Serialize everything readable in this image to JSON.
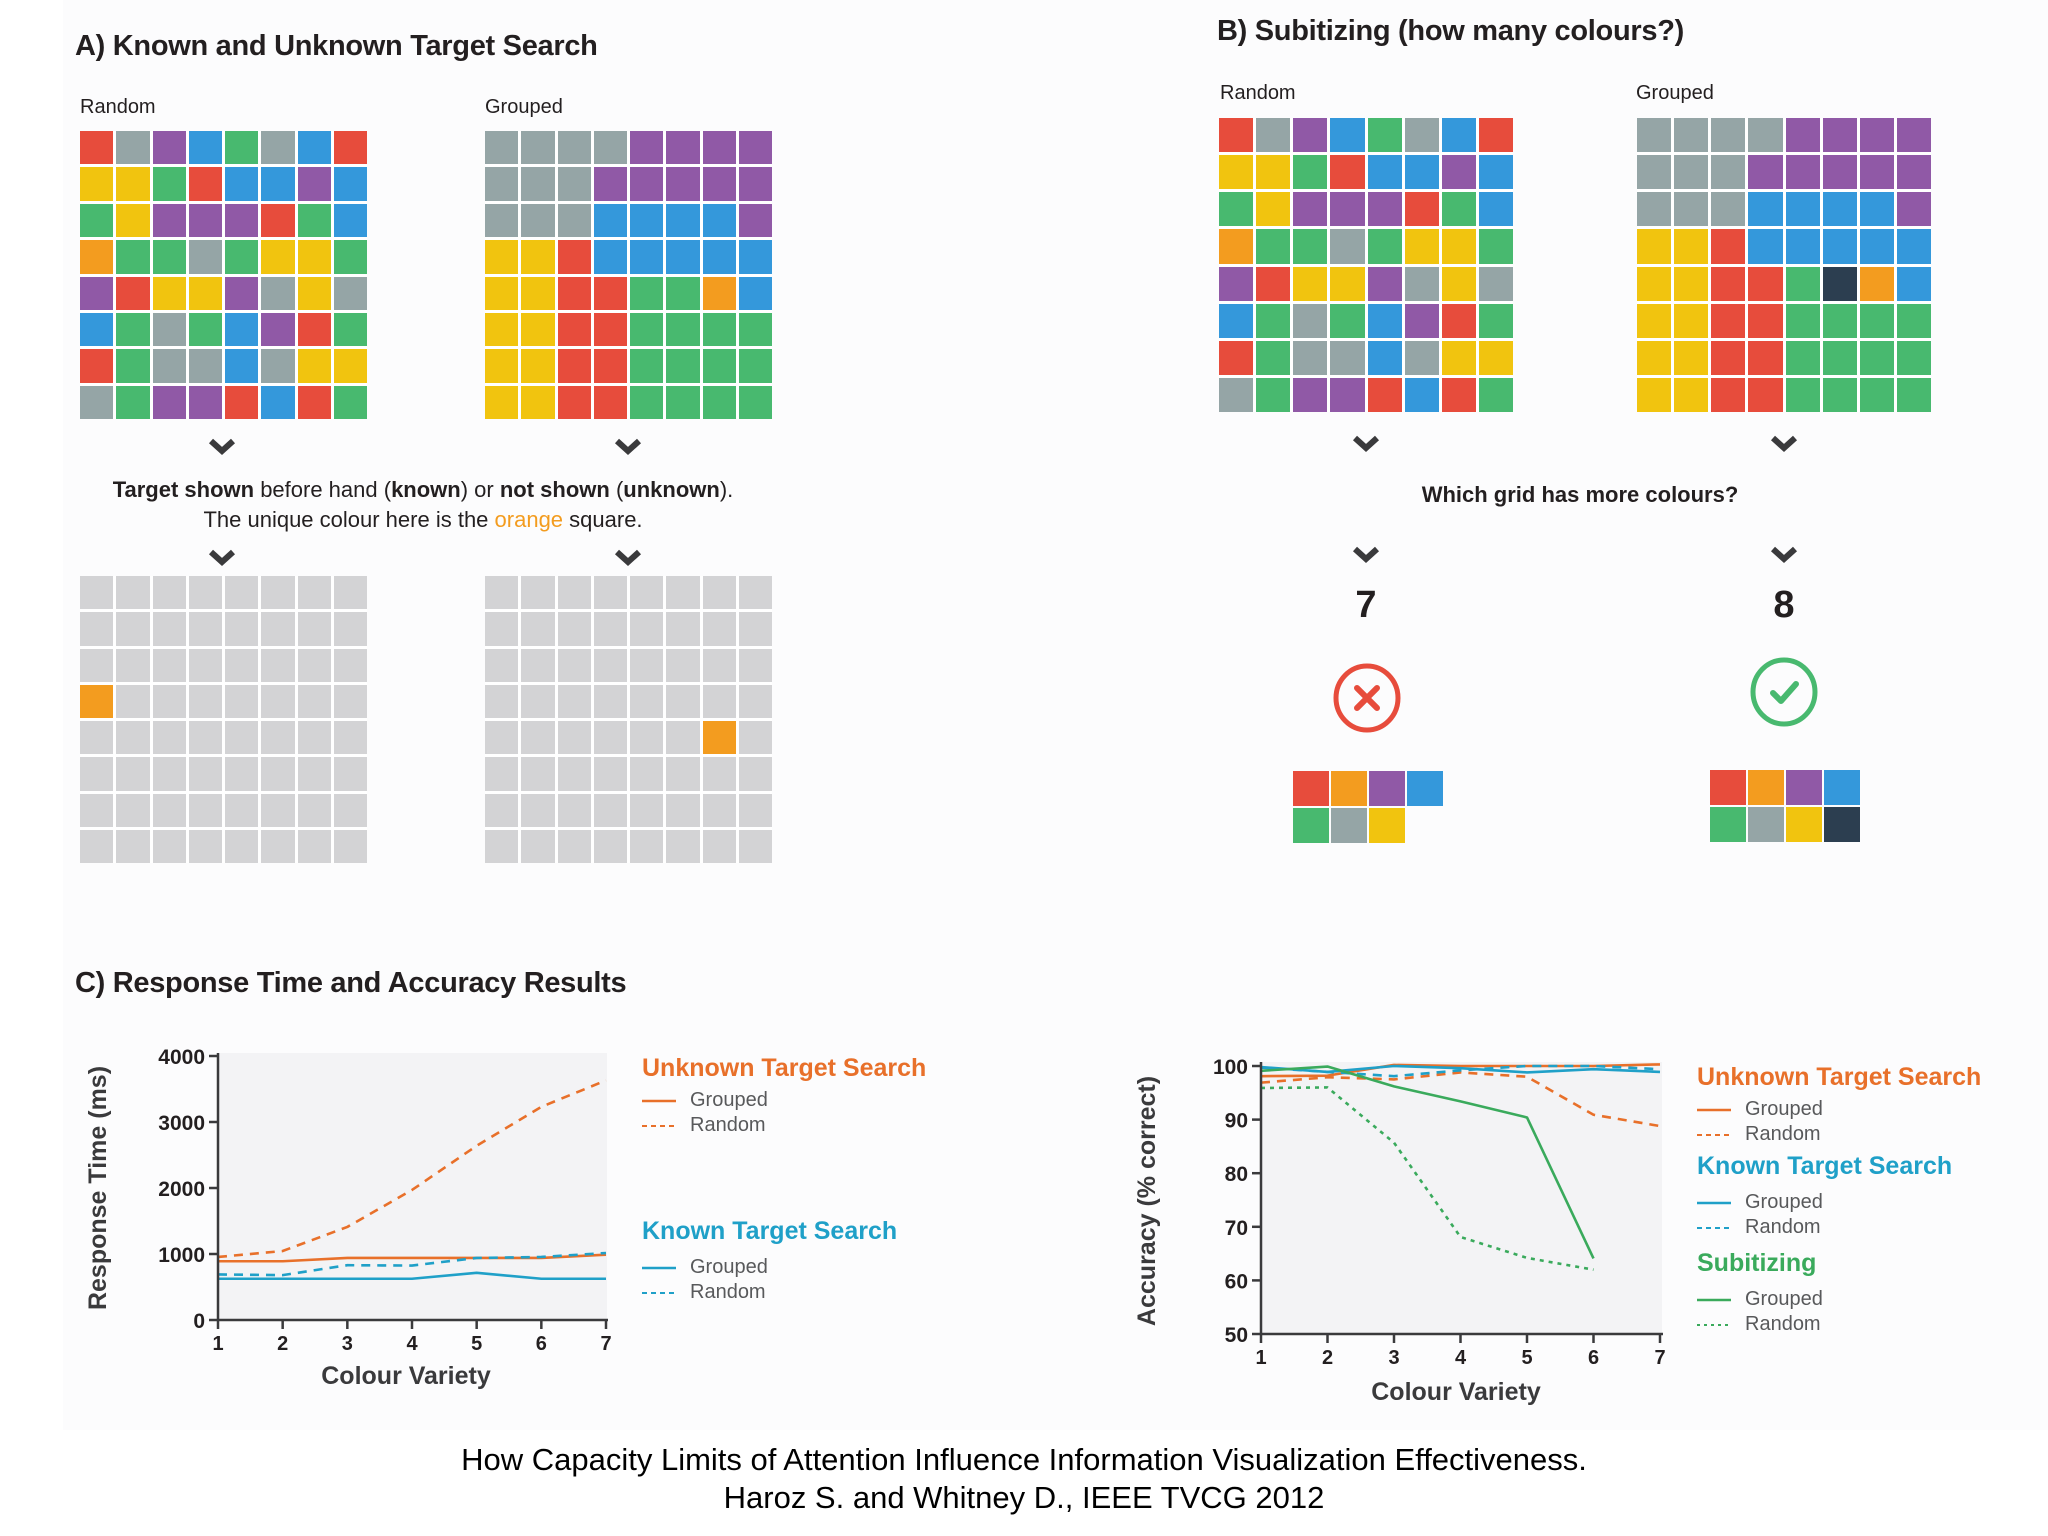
{
  "colors": {
    "red": "#e74c3c",
    "gray": "#95a5a6",
    "purple": "#9059a6",
    "blue": "#3498db",
    "green": "#48b96f",
    "yellow": "#f1c40f",
    "orange": "#f39c1f",
    "navy": "#2c3e50",
    "light": "#d3d3d5",
    "unknown": "#e8702a",
    "known": "#1fa0c8",
    "subitizing": "#3aaa5c",
    "wrong": "#e74c3c",
    "right": "#48b96f"
  },
  "panelA": {
    "title": "A) Known and Unknown Target Search",
    "random_label": "Random",
    "grouped_label": "Grouped",
    "random_grid": [
      [
        "red",
        "gray",
        "purple",
        "blue",
        "green",
        "gray",
        "blue",
        "red"
      ],
      [
        "yellow",
        "yellow",
        "green",
        "red",
        "blue",
        "blue",
        "purple",
        "blue"
      ],
      [
        "green",
        "yellow",
        "purple",
        "purple",
        "purple",
        "red",
        "green",
        "blue"
      ],
      [
        "orange",
        "green",
        "green",
        "gray",
        "green",
        "yellow",
        "yellow",
        "green"
      ],
      [
        "purple",
        "red",
        "yellow",
        "yellow",
        "purple",
        "gray",
        "yellow",
        "gray"
      ],
      [
        "blue",
        "green",
        "gray",
        "green",
        "blue",
        "purple",
        "red",
        "green"
      ],
      [
        "red",
        "green",
        "gray",
        "gray",
        "blue",
        "gray",
        "yellow",
        "yellow"
      ],
      [
        "gray",
        "green",
        "purple",
        "purple",
        "red",
        "blue",
        "red",
        "green"
      ]
    ],
    "grouped_grid": [
      [
        "gray",
        "gray",
        "gray",
        "gray",
        "purple",
        "purple",
        "purple",
        "purple"
      ],
      [
        "gray",
        "gray",
        "gray",
        "purple",
        "purple",
        "purple",
        "purple",
        "purple"
      ],
      [
        "gray",
        "gray",
        "gray",
        "blue",
        "blue",
        "blue",
        "blue",
        "purple"
      ],
      [
        "yellow",
        "yellow",
        "red",
        "blue",
        "blue",
        "blue",
        "blue",
        "blue"
      ],
      [
        "yellow",
        "yellow",
        "red",
        "red",
        "green",
        "green",
        "orange",
        "blue"
      ],
      [
        "yellow",
        "yellow",
        "red",
        "red",
        "green",
        "green",
        "green",
        "green"
      ],
      [
        "yellow",
        "yellow",
        "red",
        "red",
        "green",
        "green",
        "green",
        "green"
      ],
      [
        "yellow",
        "yellow",
        "red",
        "red",
        "green",
        "green",
        "green",
        "green"
      ]
    ],
    "instruction": {
      "t1": "Target shown",
      "t2": " before hand (",
      "t3": "known",
      "t4": ") or ",
      "t5": "not shown",
      "t6": " (",
      "t7": "unknown",
      "t8": ").",
      "line2a": "The unique colour here is the ",
      "line2b": "orange",
      "line2c": " square."
    },
    "random_target": {
      "row": 4,
      "col": 1
    },
    "grouped_target": {
      "row": 5,
      "col": 7
    }
  },
  "panelB": {
    "title": "B) Subitizing (how many colours?)",
    "random_label": "Random",
    "grouped_label": "Grouped",
    "random_grid": [
      [
        "red",
        "gray",
        "purple",
        "blue",
        "green",
        "gray",
        "blue",
        "red"
      ],
      [
        "yellow",
        "yellow",
        "green",
        "red",
        "blue",
        "blue",
        "purple",
        "blue"
      ],
      [
        "green",
        "yellow",
        "purple",
        "purple",
        "purple",
        "red",
        "green",
        "blue"
      ],
      [
        "orange",
        "green",
        "green",
        "gray",
        "green",
        "yellow",
        "yellow",
        "green"
      ],
      [
        "purple",
        "red",
        "yellow",
        "yellow",
        "purple",
        "gray",
        "yellow",
        "gray"
      ],
      [
        "blue",
        "green",
        "gray",
        "green",
        "blue",
        "purple",
        "red",
        "green"
      ],
      [
        "red",
        "green",
        "gray",
        "gray",
        "blue",
        "gray",
        "yellow",
        "yellow"
      ],
      [
        "gray",
        "green",
        "purple",
        "purple",
        "red",
        "blue",
        "red",
        "green"
      ]
    ],
    "grouped_grid": [
      [
        "gray",
        "gray",
        "gray",
        "gray",
        "purple",
        "purple",
        "purple",
        "purple"
      ],
      [
        "gray",
        "gray",
        "gray",
        "purple",
        "purple",
        "purple",
        "purple",
        "purple"
      ],
      [
        "gray",
        "gray",
        "gray",
        "blue",
        "blue",
        "blue",
        "blue",
        "purple"
      ],
      [
        "yellow",
        "yellow",
        "red",
        "blue",
        "blue",
        "blue",
        "blue",
        "blue"
      ],
      [
        "yellow",
        "yellow",
        "red",
        "red",
        "green",
        "navy",
        "orange",
        "blue"
      ],
      [
        "yellow",
        "yellow",
        "red",
        "red",
        "green",
        "green",
        "green",
        "green"
      ],
      [
        "yellow",
        "yellow",
        "red",
        "red",
        "green",
        "green",
        "green",
        "green"
      ],
      [
        "yellow",
        "yellow",
        "red",
        "red",
        "green",
        "green",
        "green",
        "green"
      ]
    ],
    "question": "Which grid has more colours?",
    "random_answer": "7",
    "grouped_answer": "8",
    "random_result_icon": "x-circle-icon",
    "grouped_result_icon": "check-circle-icon",
    "random_palette": [
      "red",
      "orange",
      "purple",
      "blue",
      "green",
      "gray",
      "yellow"
    ],
    "grouped_palette": [
      "red",
      "orange",
      "purple",
      "blue",
      "green",
      "gray",
      "yellow",
      "navy"
    ]
  },
  "panelC": {
    "title": "C) Response Time and Accuracy Results"
  },
  "chart_data": [
    {
      "type": "line",
      "title": "",
      "xlabel": "Colour Variety",
      "ylabel": "Response Time (ms)",
      "x": [
        1,
        2,
        3,
        4,
        5,
        6,
        7
      ],
      "xticks": [
        "1",
        "2",
        "3",
        "4",
        "5",
        "6",
        "7"
      ],
      "ylim": [
        0,
        4000
      ],
      "yticks": [
        "0",
        "1000",
        "2000",
        "3000",
        "4000"
      ],
      "grid": false,
      "legend_position": "right",
      "legend_groups": [
        {
          "title": "Unknown Target Search",
          "color_key": "unknown",
          "items": [
            "Grouped",
            "Random"
          ]
        },
        {
          "title": "Known Target Search",
          "color_key": "known",
          "items": [
            "Grouped",
            "Random"
          ]
        }
      ],
      "series": [
        {
          "name": "Unknown Target Search - Grouped",
          "color_key": "unknown",
          "style": "solid",
          "values": [
            890,
            890,
            940,
            940,
            940,
            940,
            990
          ]
        },
        {
          "name": "Unknown Target Search - Random",
          "color_key": "unknown",
          "style": "dashed",
          "values": [
            955,
            1045,
            1410,
            1970,
            2640,
            3230,
            3630
          ]
        },
        {
          "name": "Known Target Search - Grouped",
          "color_key": "known",
          "style": "solid",
          "values": [
            625,
            625,
            625,
            625,
            715,
            625,
            625
          ]
        },
        {
          "name": "Known Target Search - Random",
          "color_key": "known",
          "style": "dashed",
          "values": [
            690,
            680,
            830,
            825,
            940,
            955,
            1015
          ]
        }
      ]
    },
    {
      "type": "line",
      "title": "",
      "xlabel": "Colour Variety",
      "ylabel": "Accuracy (% correct)",
      "x": [
        1,
        2,
        3,
        4,
        5,
        6,
        7
      ],
      "xticks": [
        "1",
        "2",
        "3",
        "4",
        "5",
        "6",
        "7"
      ],
      "ylim": [
        50,
        100
      ],
      "yticks": [
        "50",
        "60",
        "70",
        "80",
        "90",
        "100"
      ],
      "grid": false,
      "legend_position": "right",
      "legend_groups": [
        {
          "title": "Unknown Target Search",
          "color_key": "unknown",
          "items": [
            "Grouped",
            "Random"
          ]
        },
        {
          "title": "Known Target Search",
          "color_key": "known",
          "items": [
            "Grouped",
            "Random"
          ]
        },
        {
          "title": "Subitizing",
          "color_key": "subitizing",
          "items": [
            "Grouped",
            "Random"
          ]
        }
      ],
      "series": [
        {
          "name": "Unknown Target Search - Grouped",
          "color_key": "unknown",
          "style": "solid",
          "values": [
            98.1,
            98.2,
            100.2,
            100.0,
            100.0,
            100.0,
            100.3
          ]
        },
        {
          "name": "Unknown Target Search - Random",
          "color_key": "unknown",
          "style": "dashed",
          "values": [
            96.9,
            97.9,
            97.5,
            98.8,
            98.0,
            90.9,
            88.8
          ]
        },
        {
          "name": "Known Target Search - Grouped",
          "color_key": "known",
          "style": "solid",
          "values": [
            99.8,
            98.9,
            100.0,
            99.6,
            98.8,
            99.4,
            98.9
          ]
        },
        {
          "name": "Known Target Search - Random",
          "color_key": "known",
          "style": "dashed",
          "values": [
            99.7,
            98.9,
            98.1,
            99.2,
            100.0,
            100.0,
            99.4
          ]
        },
        {
          "name": "Subitizing - Grouped",
          "color_key": "subitizing",
          "style": "solid",
          "values": [
            99.1,
            99.9,
            96.2,
            93.4,
            90.4,
            64.1,
            null
          ]
        },
        {
          "name": "Subitizing - Random",
          "color_key": "subitizing",
          "style": "dotted",
          "values": [
            95.9,
            96.0,
            85.7,
            68.1,
            64.2,
            62.0,
            null
          ]
        }
      ]
    }
  ],
  "caption": {
    "line1": "How Capacity Limits of Attention Influence Information Visualization Effectiveness.",
    "line2": "Haroz S. and Whitney D., IEEE TVCG 2012"
  }
}
